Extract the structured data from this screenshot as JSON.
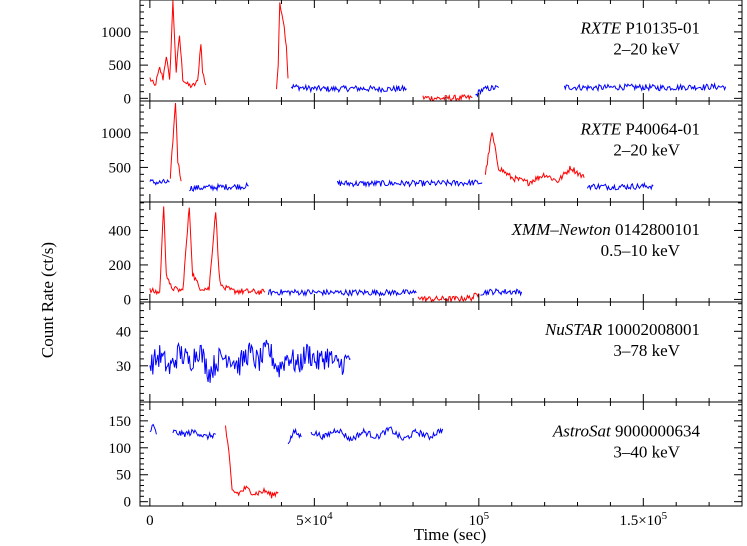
{
  "chart_data": {
    "type": "line",
    "x_range": [
      -3000,
      180000
    ],
    "xlabel": "Time (sec)",
    "ylabel": "Count Rate (ct/s)",
    "x_ticks": [
      {
        "value": 0,
        "label": "0",
        "sup": ""
      },
      {
        "value": 50000,
        "label": "5×10",
        "sup": "4"
      },
      {
        "value": 100000,
        "label": "10",
        "sup": "5"
      },
      {
        "value": 150000,
        "label": "1.5×10",
        "sup": "5"
      }
    ],
    "colors": {
      "flare": "#ff0000",
      "quiescent": "#0000ff"
    },
    "panels": [
      {
        "observation_id": "P10135-01",
        "mission": "RXTE",
        "energy": "2–20 keV",
        "ylim": [
          -40,
          1480
        ],
        "yticks": [
          0,
          500,
          1000
        ],
        "series": [
          {
            "color": "red",
            "points": [
              [
                0,
                300
              ],
              [
                1500,
                180
              ],
              [
                3000,
                450
              ],
              [
                4000,
                300
              ],
              [
                5000,
                650
              ],
              [
                6000,
                250
              ],
              [
                7000,
                1450
              ],
              [
                8000,
                400
              ],
              [
                9000,
                950
              ],
              [
                10000,
                300
              ],
              [
                11500,
                200
              ],
              [
                13000,
                180
              ],
              [
                14500,
                250
              ],
              [
                15500,
                850
              ],
              [
                16000,
                400
              ],
              [
                17000,
                200
              ]
            ]
          },
          {
            "color": "red",
            "points": [
              [
                38500,
                150
              ],
              [
                39000,
                500
              ],
              [
                39500,
                1450
              ],
              [
                40500,
                1200
              ],
              [
                41500,
                800
              ],
              [
                42000,
                300
              ]
            ]
          },
          {
            "color": "blue",
            "points": [
              [
                43000,
                180
              ],
              [
                48000,
                150
              ],
              [
                55000,
                140
              ],
              [
                62000,
                150
              ],
              [
                70000,
                140
              ],
              [
                78000,
                145
              ]
            ]
          },
          {
            "color": "red",
            "points": [
              [
                83000,
                10
              ],
              [
                88000,
                0
              ],
              [
                94000,
                5
              ],
              [
                98000,
                10
              ]
            ]
          },
          {
            "color": "blue",
            "points": [
              [
                99000,
                40
              ],
              [
                100500,
                120
              ],
              [
                103000,
                150
              ],
              [
                106000,
                160
              ]
            ]
          },
          {
            "color": "blue",
            "points": [
              [
                126000,
                170
              ],
              [
                135000,
                160
              ],
              [
                145000,
                170
              ],
              [
                155000,
                160
              ],
              [
                165000,
                170
              ],
              [
                175000,
                175
              ]
            ]
          }
        ]
      },
      {
        "observation_id": "P40064-01",
        "mission": "RXTE",
        "energy": "2–20 keV",
        "ylim": [
          0,
          1460
        ],
        "yticks": [
          500,
          1000
        ],
        "series": [
          {
            "color": "blue",
            "points": [
              [
                0,
                290
              ],
              [
                3000,
                280
              ],
              [
                6000,
                290
              ]
            ]
          },
          {
            "color": "red",
            "points": [
              [
                6200,
                300
              ],
              [
                7000,
                900
              ],
              [
                7800,
                1450
              ],
              [
                8500,
                600
              ],
              [
                9500,
                300
              ]
            ]
          },
          {
            "color": "blue",
            "points": [
              [
                12000,
                200
              ],
              [
                18000,
                210
              ],
              [
                24000,
                220
              ],
              [
                30000,
                230
              ]
            ]
          },
          {
            "color": "blue",
            "points": [
              [
                57000,
                270
              ],
              [
                66000,
                265
              ],
              [
                75000,
                270
              ],
              [
                85000,
                268
              ],
              [
                95000,
                275
              ],
              [
                101000,
                280
              ]
            ]
          },
          {
            "color": "red",
            "points": [
              [
                102000,
                400
              ],
              [
                104000,
                1000
              ],
              [
                106000,
                500
              ],
              [
                110000,
                350
              ],
              [
                115000,
                280
              ],
              [
                120000,
                400
              ],
              [
                124000,
                300
              ],
              [
                128000,
                500
              ],
              [
                132000,
                350
              ]
            ]
          },
          {
            "color": "blue",
            "points": [
              [
                133000,
                230
              ],
              [
                140000,
                220
              ],
              [
                147000,
                225
              ],
              [
                153000,
                230
              ]
            ]
          }
        ]
      },
      {
        "observation_id": "0142800101",
        "mission": "XMM–Newton",
        "energy": "0.5–10 keV",
        "ylim": [
          -15,
          565
        ],
        "yticks": [
          0,
          200,
          400
        ],
        "series": [
          {
            "color": "red",
            "points": [
              [
                0,
                50
              ],
              [
                3000,
                40
              ],
              [
                4200,
                550
              ],
              [
                5000,
                150
              ],
              [
                6000,
                80
              ],
              [
                7500,
                60
              ],
              [
                10000,
                50
              ],
              [
                12000,
                540
              ],
              [
                13000,
                150
              ],
              [
                15000,
                70
              ],
              [
                18000,
                60
              ],
              [
                20000,
                520
              ],
              [
                21000,
                150
              ],
              [
                22000,
                70
              ],
              [
                25000,
                50
              ],
              [
                30000,
                45
              ],
              [
                35000,
                42
              ]
            ]
          },
          {
            "color": "blue",
            "points": [
              [
                36000,
                42
              ],
              [
                45000,
                42
              ],
              [
                55000,
                40
              ],
              [
                65000,
                40
              ],
              [
                75000,
                40
              ],
              [
                81000,
                38
              ]
            ]
          },
          {
            "color": "red",
            "points": [
              [
                81500,
                20
              ],
              [
                83000,
                3
              ],
              [
                88000,
                2
              ],
              [
                93000,
                3
              ],
              [
                98000,
                10
              ],
              [
                100000,
                35
              ]
            ]
          },
          {
            "color": "blue",
            "points": [
              [
                100500,
                40
              ],
              [
                104000,
                45
              ],
              [
                108000,
                45
              ],
              [
                113000,
                44
              ]
            ]
          }
        ]
      },
      {
        "observation_id": "10002008001",
        "mission": "NuSTAR",
        "energy": "3–78 keV",
        "ylim": [
          19.5,
          48.5
        ],
        "yticks": [
          30,
          40
        ],
        "series": [
          {
            "color": "blue",
            "points": [
              [
                0,
                30
              ],
              [
                3000,
                33
              ],
              [
                6000,
                29
              ],
              [
                9000,
                34
              ],
              [
                12000,
                31
              ],
              [
                15000,
                35
              ],
              [
                18000,
                28
              ],
              [
                21000,
                32
              ],
              [
                24000,
                33
              ],
              [
                27000,
                30
              ],
              [
                30000,
                34
              ],
              [
                33000,
                31
              ],
              [
                36000,
                35
              ],
              [
                39000,
                29
              ],
              [
                42000,
                33
              ],
              [
                45000,
                30
              ],
              [
                48000,
                34
              ],
              [
                51000,
                31
              ],
              [
                54000,
                33
              ],
              [
                57000,
                30
              ],
              [
                61000,
                32
              ]
            ]
          }
        ]
      },
      {
        "observation_id": "9000000634",
        "mission": "AstroSat",
        "energy": "3–40 keV",
        "ylim": [
          -8,
          185
        ],
        "yticks": [
          0,
          50,
          100,
          150
        ],
        "series": [
          {
            "color": "blue",
            "points": [
              [
                0,
                130
              ],
              [
                1000,
                140
              ],
              [
                2000,
                125
              ]
            ]
          },
          {
            "color": "blue",
            "points": [
              [
                7000,
                130
              ],
              [
                10000,
                125
              ],
              [
                14000,
                130
              ],
              [
                17000,
                120
              ],
              [
                20000,
                125
              ]
            ]
          },
          {
            "color": "red",
            "points": [
              [
                23000,
                140
              ],
              [
                24000,
                90
              ],
              [
                25000,
                20
              ],
              [
                27000,
                15
              ],
              [
                29000,
                25
              ],
              [
                32000,
                15
              ],
              [
                35000,
                20
              ],
              [
                37000,
                12
              ],
              [
                39000,
                18
              ]
            ]
          },
          {
            "color": "blue",
            "points": [
              [
                42000,
                110
              ],
              [
                44000,
                130
              ],
              [
                46000,
                120
              ]
            ]
          },
          {
            "color": "blue",
            "points": [
              [
                49000,
                130
              ],
              [
                53000,
                120
              ],
              [
                57000,
                135
              ],
              [
                61000,
                115
              ],
              [
                65000,
                130
              ],
              [
                69000,
                120
              ],
              [
                73000,
                135
              ],
              [
                77000,
                115
              ],
              [
                81000,
                130
              ],
              [
                85000,
                120
              ],
              [
                89000,
                135
              ]
            ]
          }
        ]
      }
    ]
  }
}
